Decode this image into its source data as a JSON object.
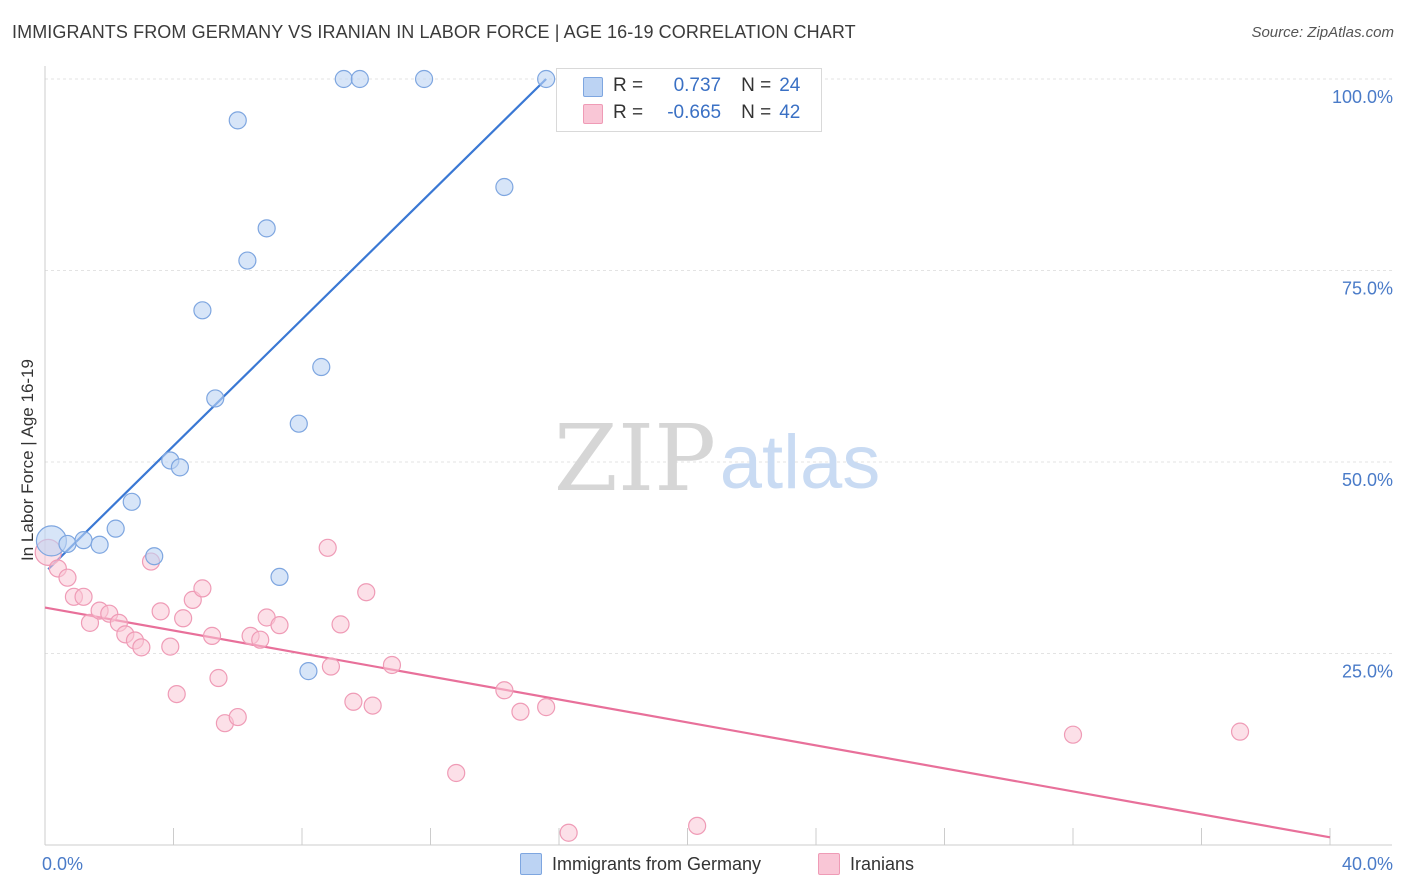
{
  "title": "IMMIGRANTS FROM GERMANY VS IRANIAN IN LABOR FORCE | AGE 16-19 CORRELATION CHART",
  "source": "Source: ZipAtlas.com",
  "watermark": {
    "zip": "ZIP",
    "atlas": "atlas"
  },
  "legend": {
    "r_label": "R =",
    "n_label": "N =",
    "series": [
      {
        "r": "0.737",
        "n": "24"
      },
      {
        "r": "-0.665",
        "n": "42"
      }
    ]
  },
  "chart_data": {
    "type": "scatter",
    "title": "IMMIGRANTS FROM GERMANY VS IRANIAN IN LABOR FORCE | AGE 16-19 CORRELATION CHART",
    "xlabel": "",
    "ylabel": "In Labor Force | Age 16-19",
    "xlim": [
      0,
      40
    ],
    "ylim": [
      0,
      100
    ],
    "x_tick_labels": [
      "0.0%",
      "40.0%"
    ],
    "y_ticks": [
      25,
      50,
      75,
      100
    ],
    "y_tick_labels": [
      "25.0%",
      "50.0%",
      "75.0%",
      "100.0%"
    ],
    "grid": "horizontal dashed",
    "legend_position": "bottom",
    "colors": {
      "germany": "#6f9fe0",
      "iranians": "#f29cb7",
      "germany_line": "#3a78d4",
      "iranians_line": "#e8709a"
    },
    "series": [
      {
        "name": "Immigrants from Germany",
        "r": 0.737,
        "n": 24,
        "points": [
          [
            0.2,
            39.7
          ],
          [
            0.7,
            39.3
          ],
          [
            1.2,
            39.8
          ],
          [
            1.7,
            39.2
          ],
          [
            2.2,
            41.3
          ],
          [
            2.7,
            44.8
          ],
          [
            3.4,
            37.7
          ],
          [
            3.9,
            50.2
          ],
          [
            4.2,
            49.3
          ],
          [
            4.9,
            69.8
          ],
          [
            5.3,
            58.3
          ],
          [
            6.0,
            94.6
          ],
          [
            6.3,
            76.3
          ],
          [
            6.9,
            80.5
          ],
          [
            7.3,
            35.0
          ],
          [
            7.9,
            55.0
          ],
          [
            8.2,
            22.7
          ],
          [
            8.6,
            62.4
          ],
          [
            9.3,
            100.0
          ],
          [
            9.8,
            100.0
          ],
          [
            11.8,
            100.0
          ],
          [
            14.3,
            85.9
          ],
          [
            15.6,
            100.0
          ],
          [
            16.3,
            100.0
          ]
        ],
        "trend": [
          [
            0.1,
            36.0
          ],
          [
            15.6,
            100.0
          ]
        ]
      },
      {
        "name": "Iranians",
        "r": -0.665,
        "n": 42,
        "points": [
          [
            0.1,
            38.2
          ],
          [
            0.4,
            36.1
          ],
          [
            0.7,
            34.9
          ],
          [
            0.9,
            32.4
          ],
          [
            1.2,
            32.4
          ],
          [
            1.4,
            29.0
          ],
          [
            1.7,
            30.6
          ],
          [
            2.0,
            30.2
          ],
          [
            2.3,
            29.0
          ],
          [
            2.5,
            27.5
          ],
          [
            2.8,
            26.7
          ],
          [
            3.0,
            25.8
          ],
          [
            3.3,
            37.0
          ],
          [
            3.6,
            30.5
          ],
          [
            3.9,
            25.9
          ],
          [
            4.1,
            19.7
          ],
          [
            4.3,
            29.6
          ],
          [
            4.6,
            32.0
          ],
          [
            4.9,
            33.5
          ],
          [
            5.2,
            27.3
          ],
          [
            5.4,
            21.8
          ],
          [
            5.6,
            15.9
          ],
          [
            6.0,
            16.7
          ],
          [
            6.4,
            27.3
          ],
          [
            6.7,
            26.8
          ],
          [
            6.9,
            29.7
          ],
          [
            7.3,
            28.7
          ],
          [
            8.8,
            38.8
          ],
          [
            8.9,
            23.3
          ],
          [
            9.2,
            28.8
          ],
          [
            9.6,
            18.7
          ],
          [
            10.0,
            33.0
          ],
          [
            10.2,
            18.2
          ],
          [
            10.8,
            23.5
          ],
          [
            12.8,
            9.4
          ],
          [
            14.3,
            20.2
          ],
          [
            14.8,
            17.4
          ],
          [
            15.6,
            18.0
          ],
          [
            16.3,
            1.6
          ],
          [
            20.3,
            2.5
          ],
          [
            32.0,
            14.4
          ],
          [
            37.2,
            14.8
          ]
        ],
        "trend": [
          [
            0.0,
            31.0
          ],
          [
            40.0,
            1.0
          ]
        ]
      }
    ]
  }
}
